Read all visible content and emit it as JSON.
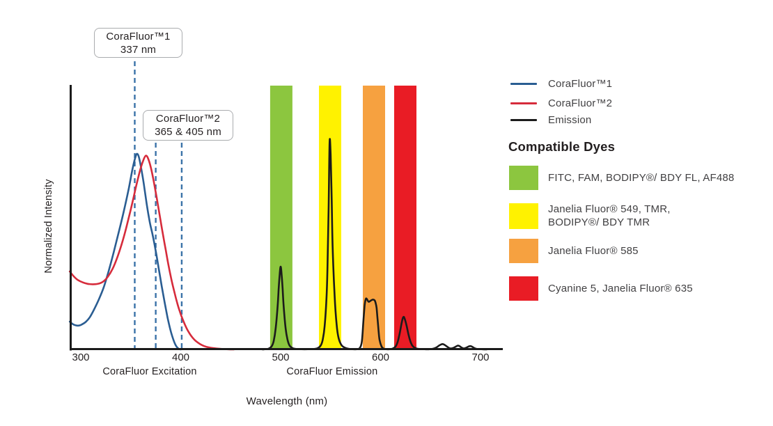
{
  "annotations": [
    {
      "title": "CoraFluor™1",
      "subtitle": "337 nm"
    },
    {
      "title": "CoraFluor™2",
      "subtitle": "365 & 405 nm"
    }
  ],
  "legend": {
    "items": [
      {
        "label": "CoraFluor™1",
        "color": "#2a5d92"
      },
      {
        "label": "CoraFluor™2",
        "color": "#d62b3b"
      },
      {
        "label": "Emission",
        "color": "#1b1b1b"
      }
    ]
  },
  "compatible_dyes": {
    "heading": "Compatible Dyes",
    "items": [
      {
        "name": "green-dyes",
        "color": "#8cc63f",
        "lines": [
          "FITC, FAM, BODIPY®/ BDY FL, AF488"
        ]
      },
      {
        "name": "yellow-dyes",
        "color": "#fff200",
        "lines": [
          "Janelia Fluor® 549, TMR,",
          "BODIPY®/ BDY TMR"
        ]
      },
      {
        "name": "orange-dyes",
        "color": "#f6a140",
        "lines": [
          "Janelia Fluor® 585"
        ]
      },
      {
        "name": "red-dyes",
        "color": "#e91c25",
        "lines": [
          "Cyanine 5, Janelia Fluor® 635"
        ]
      }
    ]
  },
  "chart_data": {
    "type": "line",
    "xlabel": "Wavelength (nm)",
    "ylabel": "Normalized Intensity",
    "x_ticks": [
      300,
      400,
      500,
      600,
      700
    ],
    "xlim": [
      289,
      712
    ],
    "ylim": [
      0,
      1.28
    ],
    "grid": false,
    "legend_position": "top-right",
    "x_axis_sections": [
      {
        "label": "CoraFluor Excitation",
        "center_nm": 369
      },
      {
        "label": "CoraFluor Emission",
        "center_nm": 551.5
      }
    ],
    "dashed_lines_nm": [
      354,
      375,
      401
    ],
    "bands": [
      {
        "name": "green-filter-band",
        "color": "#8cc63f",
        "nm": [
          489.5,
          511.8
        ]
      },
      {
        "name": "yellow-filter-band",
        "color": "#fff200",
        "nm": [
          538.3,
          560.6
        ]
      },
      {
        "name": "orange-filter-band",
        "color": "#f6a140",
        "nm": [
          582.2,
          604.5
        ]
      },
      {
        "name": "red-filter-band",
        "color": "#e91c25",
        "nm": [
          613.6,
          635.9
        ]
      }
    ],
    "series": [
      {
        "key": "corafluor1-excitation-curve",
        "name": "CoraFluor™1",
        "color": "#2a5d92",
        "points": [
          [
            289,
            0.134
          ],
          [
            292,
            0.122
          ],
          [
            295,
            0.116
          ],
          [
            298,
            0.115
          ],
          [
            301,
            0.12
          ],
          [
            305,
            0.133
          ],
          [
            309,
            0.155
          ],
          [
            313,
            0.19
          ],
          [
            318,
            0.24
          ],
          [
            323,
            0.3
          ],
          [
            328,
            0.38
          ],
          [
            333,
            0.47
          ],
          [
            338,
            0.565
          ],
          [
            343,
            0.665
          ],
          [
            348,
            0.775
          ],
          [
            352,
            0.875
          ],
          [
            355,
            0.932
          ],
          [
            356.5,
            0.943
          ],
          [
            358,
            0.93
          ],
          [
            360,
            0.885
          ],
          [
            363,
            0.8
          ],
          [
            366,
            0.7
          ],
          [
            369,
            0.615
          ],
          [
            372,
            0.55
          ],
          [
            375,
            0.475
          ],
          [
            378,
            0.39
          ],
          [
            381,
            0.305
          ],
          [
            384,
            0.225
          ],
          [
            387,
            0.15
          ],
          [
            390,
            0.088
          ],
          [
            393,
            0.042
          ],
          [
            395,
            0.02
          ],
          [
            397,
            0.007
          ],
          [
            399,
            0.001
          ],
          [
            400,
            0
          ]
        ]
      },
      {
        "key": "corafluor2-excitation-curve",
        "name": "CoraFluor™2",
        "color": "#d62b3b",
        "points": [
          [
            289,
            0.376
          ],
          [
            293,
            0.352
          ],
          [
            297,
            0.335
          ],
          [
            302,
            0.323
          ],
          [
            307,
            0.316
          ],
          [
            312,
            0.314
          ],
          [
            317,
            0.316
          ],
          [
            322,
            0.326
          ],
          [
            327,
            0.35
          ],
          [
            332,
            0.39
          ],
          [
            337,
            0.45
          ],
          [
            342,
            0.525
          ],
          [
            347,
            0.615
          ],
          [
            352,
            0.715
          ],
          [
            356,
            0.8
          ],
          [
            360,
            0.875
          ],
          [
            363,
            0.917
          ],
          [
            365,
            0.934
          ],
          [
            367,
            0.925
          ],
          [
            370,
            0.88
          ],
          [
            373,
            0.81
          ],
          [
            376,
            0.73
          ],
          [
            379,
            0.645
          ],
          [
            382,
            0.56
          ],
          [
            385,
            0.48
          ],
          [
            388,
            0.4
          ],
          [
            391,
            0.33
          ],
          [
            394,
            0.27
          ],
          [
            397,
            0.215
          ],
          [
            400,
            0.17
          ],
          [
            403,
            0.133
          ],
          [
            406,
            0.101
          ],
          [
            409,
            0.076
          ],
          [
            412,
            0.056
          ],
          [
            415,
            0.041
          ],
          [
            419,
            0.027
          ],
          [
            423,
            0.017
          ],
          [
            428,
            0.01
          ],
          [
            433,
            0.006
          ],
          [
            439,
            0.003
          ],
          [
            446,
            0.001
          ],
          [
            453,
            0
          ]
        ]
      },
      {
        "key": "emission-curve",
        "name": "Emission",
        "color": "#1b1b1b",
        "points": [
          [
            482,
            0
          ],
          [
            484,
            0.001
          ],
          [
            488,
            0.004
          ],
          [
            491,
            0.015
          ],
          [
            493,
            0.04
          ],
          [
            495,
            0.1
          ],
          [
            497,
            0.21
          ],
          [
            498,
            0.29
          ],
          [
            499,
            0.36
          ],
          [
            500,
            0.399
          ],
          [
            501,
            0.36
          ],
          [
            502,
            0.29
          ],
          [
            503,
            0.21
          ],
          [
            505,
            0.1
          ],
          [
            507,
            0.045
          ],
          [
            509,
            0.018
          ],
          [
            512,
            0.006
          ],
          [
            516,
            0.002
          ],
          [
            521,
            0.001
          ],
          [
            527,
            0.001
          ],
          [
            533,
            0.002
          ],
          [
            537,
            0.006
          ],
          [
            540,
            0.018
          ],
          [
            542,
            0.045
          ],
          [
            544,
            0.11
          ],
          [
            546,
            0.26
          ],
          [
            547,
            0.42
          ],
          [
            548,
            0.68
          ],
          [
            549,
            1.0
          ],
          [
            550,
            0.94
          ],
          [
            551,
            0.74
          ],
          [
            552,
            0.5
          ],
          [
            554,
            0.26
          ],
          [
            556,
            0.12
          ],
          [
            558,
            0.055
          ],
          [
            561,
            0.02
          ],
          [
            565,
            0.007
          ],
          [
            570,
            0.002
          ],
          [
            576,
            0.001
          ],
          [
            579,
            0.006
          ],
          [
            581,
            0.03
          ],
          [
            582,
            0.08
          ],
          [
            583,
            0.15
          ],
          [
            584,
            0.21
          ],
          [
            585,
            0.24
          ],
          [
            586,
            0.245
          ],
          [
            588,
            0.23
          ],
          [
            590,
            0.235
          ],
          [
            592,
            0.24
          ],
          [
            594,
            0.237
          ],
          [
            595,
            0.225
          ],
          [
            596,
            0.2
          ],
          [
            597,
            0.145
          ],
          [
            598,
            0.09
          ],
          [
            599,
            0.045
          ],
          [
            601,
            0.014
          ],
          [
            603,
            0.004
          ],
          [
            606,
            0.001
          ],
          [
            609,
            0.001
          ],
          [
            612,
            0.004
          ],
          [
            615,
            0.014
          ],
          [
            617,
            0.035
          ],
          [
            619,
            0.075
          ],
          [
            621,
            0.125
          ],
          [
            622,
            0.147
          ],
          [
            623,
            0.157
          ],
          [
            624,
            0.15
          ],
          [
            626,
            0.115
          ],
          [
            628,
            0.07
          ],
          [
            630,
            0.037
          ],
          [
            632,
            0.017
          ],
          [
            635,
            0.006
          ],
          [
            639,
            0.002
          ],
          [
            644,
            0.001
          ],
          [
            649,
            0.001
          ],
          [
            653,
            0.004
          ],
          [
            656,
            0.01
          ],
          [
            659,
            0.02
          ],
          [
            662,
            0.026
          ],
          [
            664,
            0.022
          ],
          [
            667,
            0.012
          ],
          [
            669,
            0.006
          ],
          [
            671,
            0.005
          ],
          [
            674,
            0.01
          ],
          [
            677,
            0.018
          ],
          [
            679,
            0.016
          ],
          [
            681,
            0.009
          ],
          [
            683,
            0.005
          ],
          [
            685,
            0.007
          ],
          [
            688,
            0.014
          ],
          [
            690,
            0.016
          ],
          [
            692,
            0.012
          ],
          [
            694,
            0.006
          ],
          [
            697,
            0.002
          ],
          [
            701,
            0.001
          ],
          [
            706,
            0
          ]
        ]
      }
    ]
  }
}
